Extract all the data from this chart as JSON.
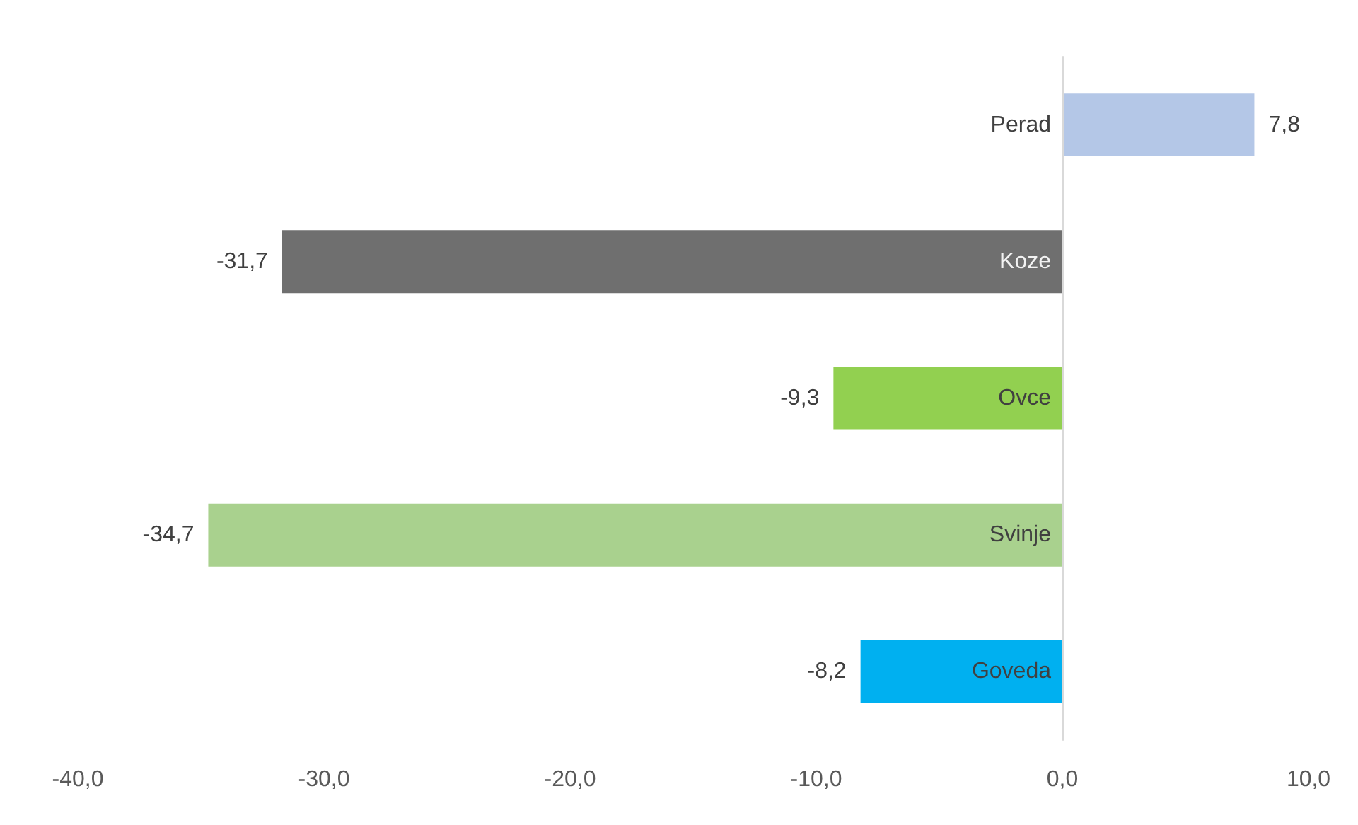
{
  "chart_data": {
    "type": "bar",
    "orientation": "horizontal",
    "categories": [
      "Perad",
      "Koze",
      "Ovce",
      "Svinje",
      "Goveda"
    ],
    "values": [
      7.8,
      -31.7,
      -9.3,
      -34.7,
      -8.2
    ],
    "colors": [
      "#b4c7e7",
      "#6f6f6f",
      "#92d050",
      "#a9d18e",
      "#00b0f0"
    ],
    "value_labels": [
      "7,8",
      "-31,7",
      "-9,3",
      "-34,7",
      "-8,2"
    ],
    "xlim": [
      -40,
      10
    ],
    "xticks": [
      {
        "value": -40,
        "label": "-40,0"
      },
      {
        "value": -30,
        "label": "-30,0"
      },
      {
        "value": -20,
        "label": "-20,0"
      },
      {
        "value": -10,
        "label": "-10,0"
      },
      {
        "value": 0,
        "label": "0,0"
      },
      {
        "value": 10,
        "label": "10,0"
      }
    ],
    "tick_labels": true
  }
}
